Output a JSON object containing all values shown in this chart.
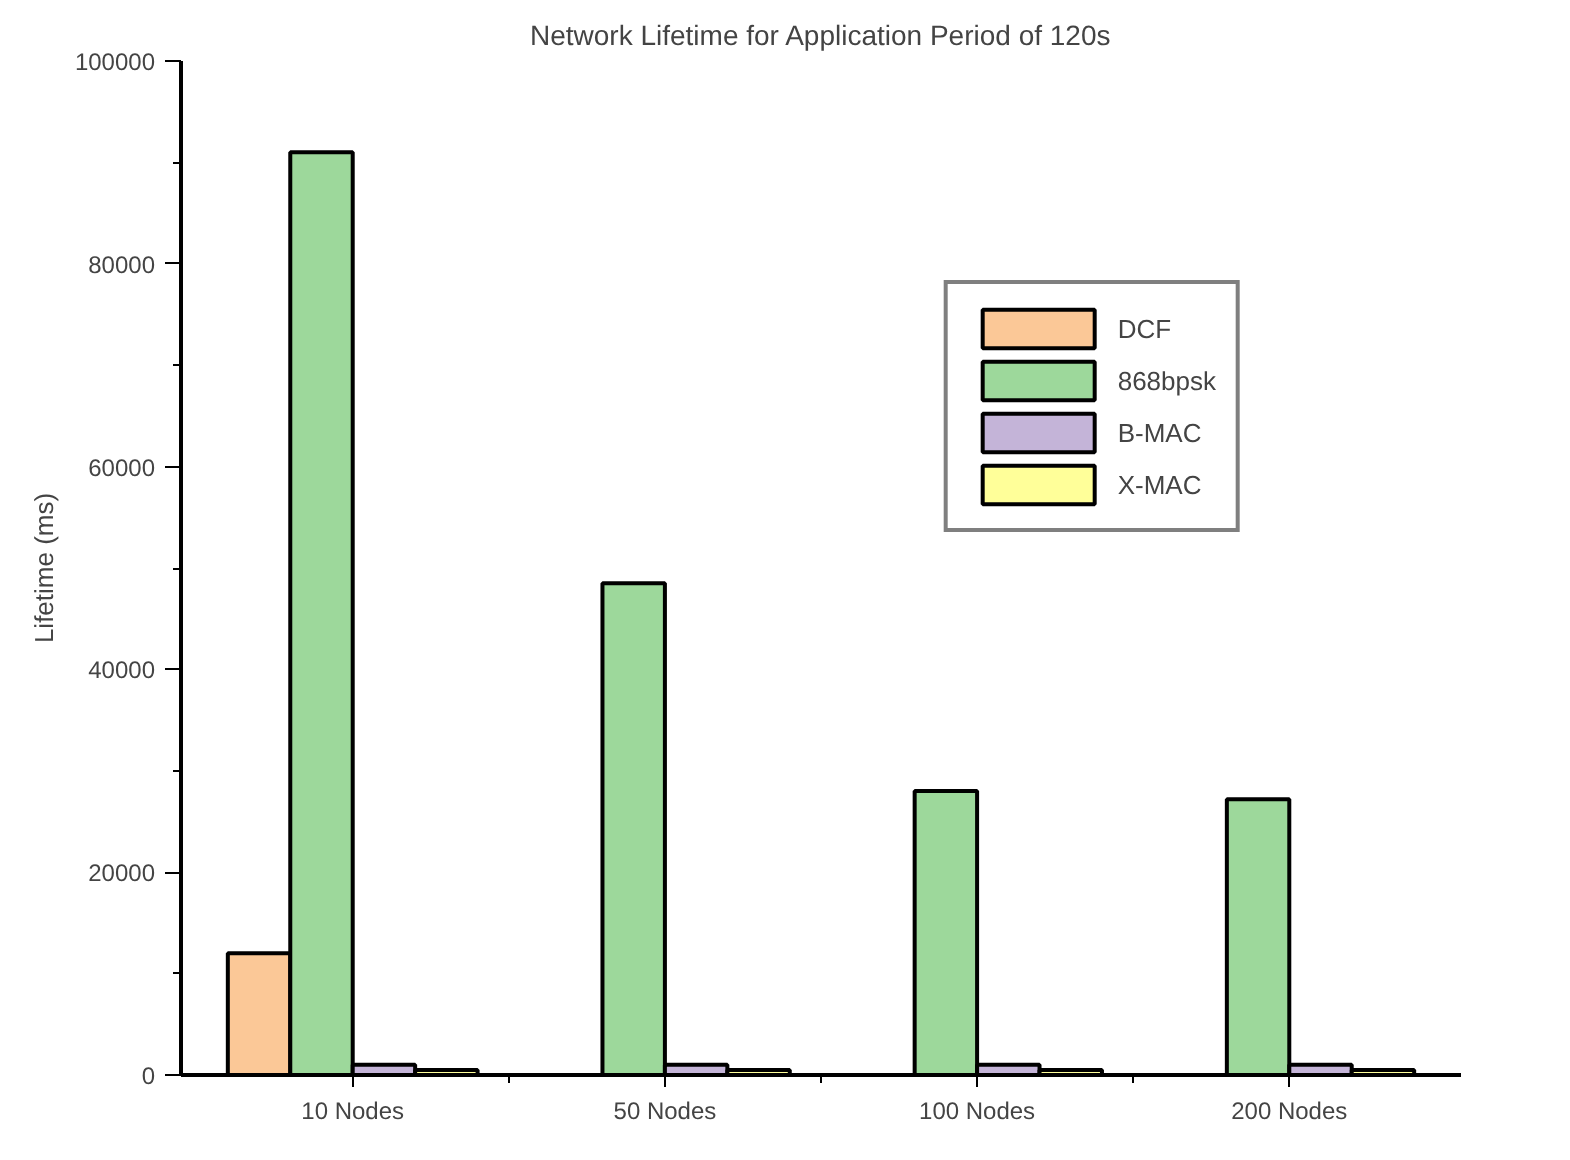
{
  "chart_data": {
    "type": "bar",
    "title": "Network Lifetime for Application Period of 120s",
    "ylabel": "Lifetime (ms)",
    "categories": [
      "10 Nodes",
      "50 Nodes",
      "100 Nodes",
      "200 Nodes"
    ],
    "series": [
      {
        "name": "DCF",
        "color": "#fbc897",
        "values": [
          12000,
          null,
          null,
          null
        ]
      },
      {
        "name": "868bpsk",
        "color": "#9dd89b",
        "values": [
          91000,
          48500,
          28000,
          27200
        ]
      },
      {
        "name": "B-MAC",
        "color": "#c4b4d8",
        "values": [
          1000,
          1000,
          1000,
          1000
        ]
      },
      {
        "name": "X-MAC",
        "color": "#ffff99",
        "values": [
          500,
          500,
          500,
          500
        ]
      }
    ],
    "ylim": [
      0,
      100000
    ],
    "yticks": [
      0,
      {
        "value": 10000,
        "label": null
      },
      20000,
      {
        "value": 30000,
        "label": null
      },
      40000,
      {
        "value": 50000,
        "label": null
      },
      60000,
      {
        "value": 70000,
        "label": null
      },
      80000,
      {
        "value": 90000,
        "label": null
      },
      100000
    ],
    "grid": false,
    "legend": "top right"
  }
}
